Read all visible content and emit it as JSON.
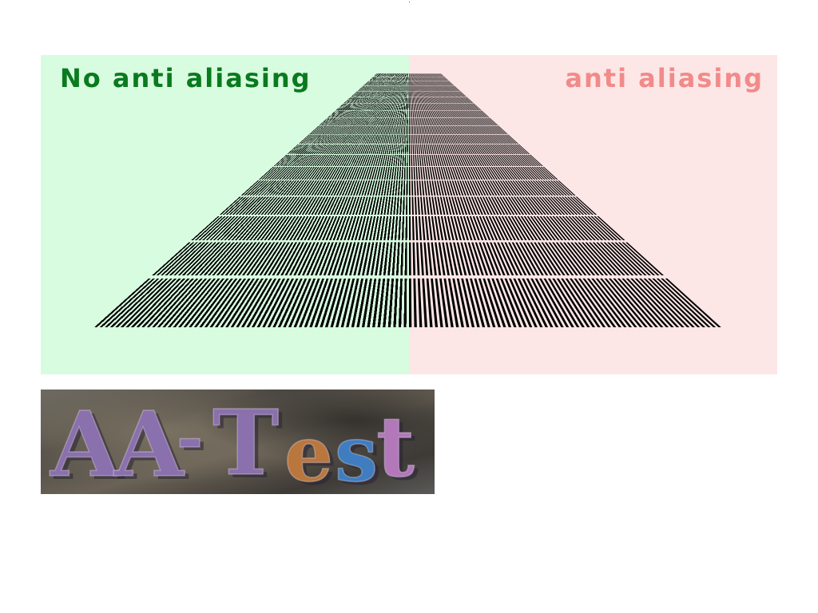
{
  "test_panel": {
    "left": {
      "label": "No anti aliasing",
      "label_color": "#0a7a1e",
      "background": "#d8fce0"
    },
    "right": {
      "label": "anti aliasing",
      "label_color": "#f28a8a",
      "background": "#fde6e6"
    }
  },
  "logo": {
    "text": "AA-Test",
    "letters": [
      {
        "char": "A",
        "color": "#8a70ad"
      },
      {
        "char": "A",
        "color": "#8a70ad"
      },
      {
        "char": "-",
        "color": "#8a70ad"
      },
      {
        "char": "T",
        "color": "#8a70ad"
      },
      {
        "char": "e",
        "color": "#b9773e"
      },
      {
        "char": "s",
        "color": "#3f7dc0"
      },
      {
        "char": "t",
        "color": "#b278b9"
      }
    ]
  }
}
